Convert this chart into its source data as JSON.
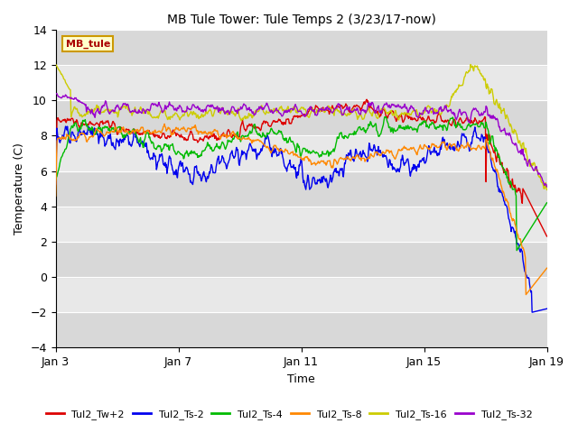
{
  "title": "MB Tule Tower: Tule Temps 2 (3/23/17-now)",
  "xlabel": "Time",
  "ylabel": "Temperature (C)",
  "ylim": [
    -4,
    14
  ],
  "yticks": [
    -4,
    -2,
    0,
    2,
    4,
    6,
    8,
    10,
    12,
    14
  ],
  "xticklabels": [
    "Jan 3",
    "Jan 7",
    "Jan 11",
    "Jan 15",
    "Jan 19"
  ],
  "background_color": "#ffffff",
  "plot_bg_color": "#e0e0e0",
  "grid_color": "#ffffff",
  "legend_labels": [
    "Tul2_Tw+2",
    "Tul2_Ts-2",
    "Tul2_Ts-4",
    "Tul2_Ts-8",
    "Tul2_Ts-16",
    "Tul2_Ts-32"
  ],
  "legend_colors": [
    "#dd0000",
    "#0000ee",
    "#00bb00",
    "#ff8800",
    "#cccc00",
    "#9900cc"
  ],
  "watermark_text": "MB_tule",
  "watermark_bg": "#ffffcc",
  "watermark_border": "#cc9900",
  "watermark_text_color": "#aa0000",
  "n_points": 800
}
